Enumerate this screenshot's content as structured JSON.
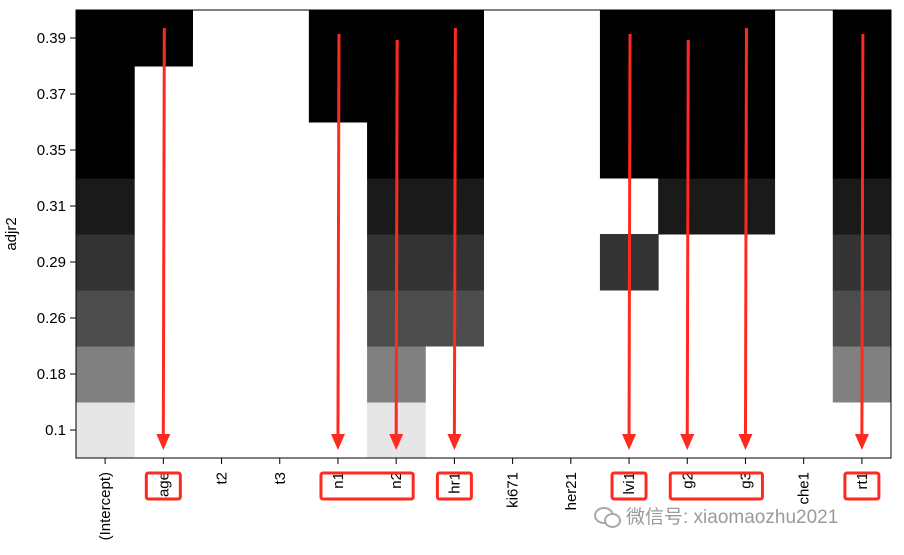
{
  "chart_data": {
    "type": "heatmap",
    "title": "",
    "xlabel": "",
    "ylabel": "adjr2",
    "columns": [
      "(Intercept)",
      "age",
      "t2",
      "t3",
      "n1",
      "n2",
      "hr1",
      "ki671",
      "her21",
      "lvi1",
      "g2",
      "g3",
      "che1",
      "rt1"
    ],
    "rows": [
      "0.1",
      "0.18",
      "0.26",
      "0.29",
      "0.31",
      "0.35",
      "0.37",
      "0.39"
    ],
    "row_colors": [
      "#e6e6e6",
      "#808080",
      "#4d4d4d",
      "#333333",
      "#1a1a1a",
      "#000000",
      "#000000",
      "#000000"
    ],
    "cells": [
      {
        "row": 0,
        "row_end": 1,
        "col": 0,
        "col_end": 1,
        "color": "#e6e6e6"
      },
      {
        "row": 0,
        "row_end": 1,
        "col": 5,
        "col_end": 6,
        "color": "#e6e6e6"
      },
      {
        "row": 1,
        "row_end": 2,
        "col": 0,
        "col_end": 1,
        "color": "#808080"
      },
      {
        "row": 1,
        "row_end": 2,
        "col": 5,
        "col_end": 6,
        "color": "#808080"
      },
      {
        "row": 1,
        "row_end": 2,
        "col": 13,
        "col_end": 14,
        "color": "#808080"
      },
      {
        "row": 2,
        "row_end": 3,
        "col": 0,
        "col_end": 1,
        "color": "#4d4d4d"
      },
      {
        "row": 2,
        "row_end": 3,
        "col": 5,
        "col_end": 7,
        "color": "#4d4d4d"
      },
      {
        "row": 2,
        "row_end": 3,
        "col": 13,
        "col_end": 14,
        "color": "#4d4d4d"
      },
      {
        "row": 3,
        "row_end": 4,
        "col": 0,
        "col_end": 1,
        "color": "#333333"
      },
      {
        "row": 3,
        "row_end": 4,
        "col": 5,
        "col_end": 7,
        "color": "#333333"
      },
      {
        "row": 3,
        "row_end": 4,
        "col": 9,
        "col_end": 10,
        "color": "#333333"
      },
      {
        "row": 3,
        "row_end": 4,
        "col": 13,
        "col_end": 14,
        "color": "#333333"
      },
      {
        "row": 4,
        "row_end": 5,
        "col": 0,
        "col_end": 1,
        "color": "#1a1a1a"
      },
      {
        "row": 4,
        "row_end": 5,
        "col": 5,
        "col_end": 7,
        "color": "#1a1a1a"
      },
      {
        "row": 4,
        "row_end": 5,
        "col": 10,
        "col_end": 12,
        "color": "#1a1a1a"
      },
      {
        "row": 4,
        "row_end": 5,
        "col": 13,
        "col_end": 14,
        "color": "#1a1a1a"
      },
      {
        "row": 5,
        "row_end": 6,
        "col": 0,
        "col_end": 1,
        "color": "#000000"
      },
      {
        "row": 5,
        "row_end": 8,
        "col": 5,
        "col_end": 7,
        "color": "#000000"
      },
      {
        "row": 5,
        "row_end": 8,
        "col": 9,
        "col_end": 12,
        "color": "#000000"
      },
      {
        "row": 5,
        "row_end": 8,
        "col": 13,
        "col_end": 14,
        "color": "#000000"
      },
      {
        "row": 6,
        "row_end": 7,
        "col": 0,
        "col_end": 1,
        "color": "#000000"
      },
      {
        "row": 6,
        "row_end": 8,
        "col": 4,
        "col_end": 5,
        "color": "#000000"
      },
      {
        "row": 7,
        "row_end": 8,
        "col": 0,
        "col_end": 2,
        "color": "#000000"
      },
      {
        "row": 7.5,
        "row_end": 8,
        "col": 0,
        "col_end": 2,
        "color": "#000000"
      }
    ],
    "highlight_boxes": [
      {
        "col": 1,
        "col_end": 1
      },
      {
        "col": 4,
        "col_end": 5
      },
      {
        "col": 6,
        "col_end": 6
      },
      {
        "col": 9,
        "col_end": 9
      },
      {
        "col": 10,
        "col_end": 11
      },
      {
        "col": 13,
        "col_end": 13
      }
    ],
    "arrows": [
      {
        "col": 1
      },
      {
        "col": 4
      },
      {
        "col": 5
      },
      {
        "col": 6
      },
      {
        "col": 9
      },
      {
        "col": 10
      },
      {
        "col": 11
      },
      {
        "col": 13
      }
    ],
    "grid": false,
    "legend": "none"
  },
  "annotation": {
    "color": "#ff2a1f"
  },
  "watermark": {
    "text": "微信号: xiaomaozhu2021",
    "icon": "wechat-icon"
  }
}
